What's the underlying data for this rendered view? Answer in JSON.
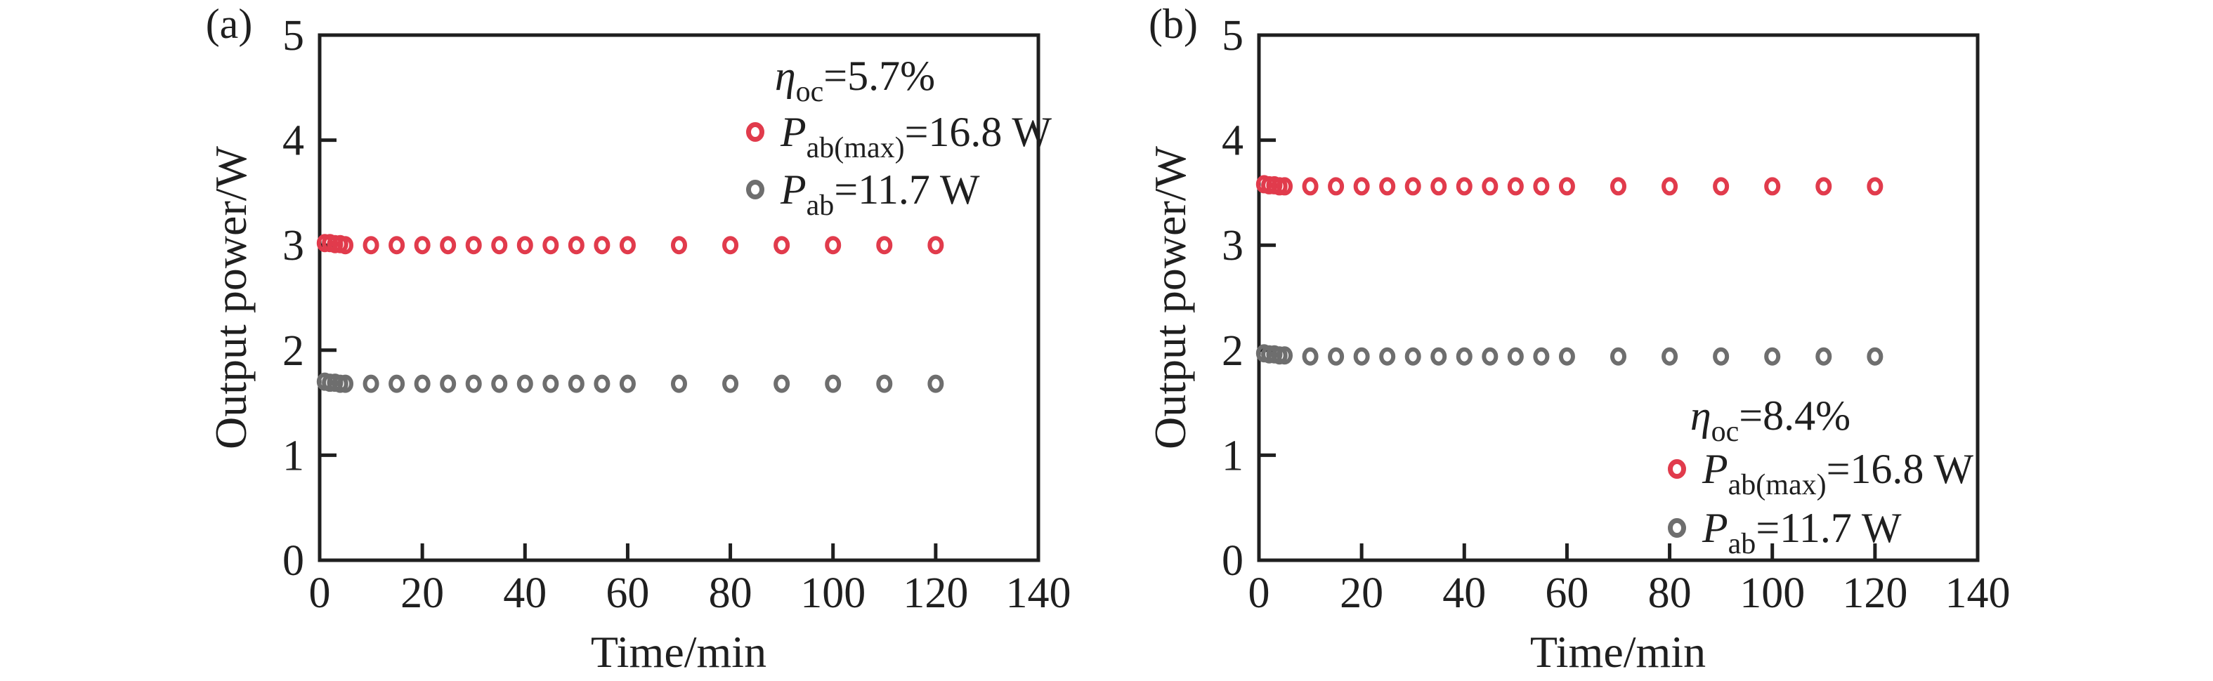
{
  "figure": {
    "background": "#ffffff",
    "axis_color": "#1f1f1f",
    "text_color": "#1f1f1f"
  },
  "chart_data": [
    {
      "type": "scatter",
      "panel_label": "(a)",
      "xlabel": "Time/min",
      "ylabel": "Output power/W",
      "xlim": [
        0,
        140
      ],
      "ylim": [
        0,
        5
      ],
      "xticks": [
        0,
        20,
        40,
        60,
        80,
        100,
        120,
        140
      ],
      "yticks": [
        0,
        1,
        2,
        3,
        4,
        5
      ],
      "grid": false,
      "legend_position": "upper-right",
      "x": [
        1,
        2,
        3,
        4,
        5,
        10,
        15,
        20,
        25,
        30,
        35,
        40,
        45,
        50,
        55,
        60,
        70,
        80,
        90,
        100,
        110,
        120
      ],
      "series": [
        {
          "name": "P_ab(max)=16.8 W",
          "color": "#e13b4c",
          "values": [
            3.02,
            3.02,
            3.01,
            3.01,
            3.0,
            3.0,
            3.0,
            3.0,
            3.0,
            3.0,
            3.0,
            3.0,
            3.0,
            3.0,
            3.0,
            3.0,
            3.0,
            3.0,
            3.0,
            3.0,
            3.0,
            3.0
          ]
        },
        {
          "name": "P_ab=11.7 W",
          "color": "#6e6e6e",
          "values": [
            1.7,
            1.69,
            1.69,
            1.68,
            1.68,
            1.68,
            1.68,
            1.68,
            1.68,
            1.68,
            1.68,
            1.68,
            1.68,
            1.68,
            1.68,
            1.68,
            1.68,
            1.68,
            1.68,
            1.68,
            1.68,
            1.68
          ]
        }
      ],
      "legend": {
        "title_parts": [
          {
            "t": "η",
            "italic": true
          },
          {
            "t": "oc",
            "sub": true
          },
          {
            "t": "=5.7%"
          }
        ],
        "entries": [
          {
            "color": "#e13b4c",
            "parts": [
              {
                "t": "P",
                "italic": true
              },
              {
                "t": "ab(max)",
                "sub": true
              },
              {
                "t": "=16.8 W"
              }
            ]
          },
          {
            "color": "#6e6e6e",
            "parts": [
              {
                "t": "P",
                "italic": true
              },
              {
                "t": "ab",
                "sub": true
              },
              {
                "t": "=11.7 W"
              }
            ]
          }
        ]
      }
    },
    {
      "type": "scatter",
      "panel_label": "(b)",
      "xlabel": "Time/min",
      "ylabel": "Output power/W",
      "xlim": [
        0,
        140
      ],
      "ylim": [
        0,
        5
      ],
      "xticks": [
        0,
        20,
        40,
        60,
        80,
        100,
        120,
        140
      ],
      "yticks": [
        0,
        1,
        2,
        3,
        4,
        5
      ],
      "grid": false,
      "legend_position": "lower-right",
      "x": [
        1,
        2,
        3,
        4,
        5,
        10,
        15,
        20,
        25,
        30,
        35,
        40,
        45,
        50,
        55,
        60,
        70,
        80,
        90,
        100,
        110,
        120
      ],
      "series": [
        {
          "name": "P_ab(max)=16.8 W",
          "color": "#e13b4c",
          "values": [
            3.58,
            3.57,
            3.57,
            3.56,
            3.56,
            3.56,
            3.56,
            3.56,
            3.56,
            3.56,
            3.56,
            3.56,
            3.56,
            3.56,
            3.56,
            3.56,
            3.56,
            3.56,
            3.56,
            3.56,
            3.56,
            3.56
          ]
        },
        {
          "name": "P_ab=11.7 W",
          "color": "#6e6e6e",
          "values": [
            1.97,
            1.96,
            1.96,
            1.95,
            1.95,
            1.94,
            1.94,
            1.94,
            1.94,
            1.94,
            1.94,
            1.94,
            1.94,
            1.94,
            1.94,
            1.94,
            1.94,
            1.94,
            1.94,
            1.94,
            1.94,
            1.94
          ]
        }
      ],
      "legend": {
        "title_parts": [
          {
            "t": "η",
            "italic": true
          },
          {
            "t": "oc",
            "sub": true
          },
          {
            "t": "=8.4%"
          }
        ],
        "entries": [
          {
            "color": "#e13b4c",
            "parts": [
              {
                "t": "P",
                "italic": true
              },
              {
                "t": "ab(max)",
                "sub": true
              },
              {
                "t": "=16.8 W"
              }
            ]
          },
          {
            "color": "#6e6e6e",
            "parts": [
              {
                "t": "P",
                "italic": true
              },
              {
                "t": "ab",
                "sub": true
              },
              {
                "t": "=11.7 W"
              }
            ]
          }
        ]
      }
    }
  ]
}
